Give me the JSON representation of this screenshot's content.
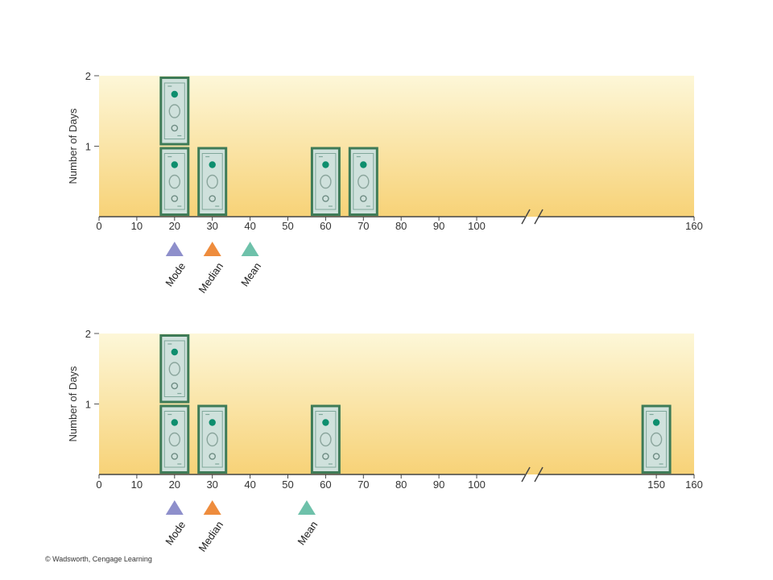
{
  "credit": "© Wadsworth, Cengage Learning",
  "colors": {
    "plot_top": "#FDF7D8",
    "plot_bottom": "#F7D277",
    "bill_border": "#3E7B57",
    "bill_face": "#CFE1DC",
    "bill_dot": "#0E8E6E",
    "mode": "#8E8FCB",
    "median": "#EE8C3D",
    "mean": "#6EC1AA"
  },
  "chart_data": [
    {
      "type": "pictograph",
      "xlabel": "",
      "ylabel": "Number of Days",
      "ylim": [
        0,
        2
      ],
      "yticks": [
        "1",
        "2"
      ],
      "xticks": [
        "0",
        "10",
        "20",
        "30",
        "40",
        "50",
        "60",
        "70",
        "80",
        "90",
        "100",
        "160"
      ],
      "axis_break": "between 100 and 160",
      "bars": [
        {
          "x": 20,
          "count": 2
        },
        {
          "x": 30,
          "count": 1
        },
        {
          "x": 60,
          "count": 1
        },
        {
          "x": 70,
          "count": 1
        }
      ],
      "markers": [
        {
          "label": "Mode",
          "x": 20,
          "color": "mode"
        },
        {
          "label": "Median",
          "x": 30,
          "color": "median"
        },
        {
          "label": "Mean",
          "x": 40,
          "color": "mean"
        }
      ]
    },
    {
      "type": "pictograph",
      "xlabel": "",
      "ylabel": "Number of Days",
      "ylim": [
        0,
        2
      ],
      "yticks": [
        "1",
        "2"
      ],
      "xticks": [
        "0",
        "10",
        "20",
        "30",
        "40",
        "50",
        "60",
        "70",
        "80",
        "90",
        "100",
        "150",
        "160"
      ],
      "axis_break": "between 100 and 150",
      "bars": [
        {
          "x": 20,
          "count": 2
        },
        {
          "x": 30,
          "count": 1
        },
        {
          "x": 60,
          "count": 1
        },
        {
          "x": 150,
          "count": 1
        }
      ],
      "markers": [
        {
          "label": "Mode",
          "x": 20,
          "color": "mode"
        },
        {
          "label": "Median",
          "x": 30,
          "color": "median"
        },
        {
          "label": "Mean",
          "x": 55,
          "color": "mean"
        }
      ]
    }
  ]
}
